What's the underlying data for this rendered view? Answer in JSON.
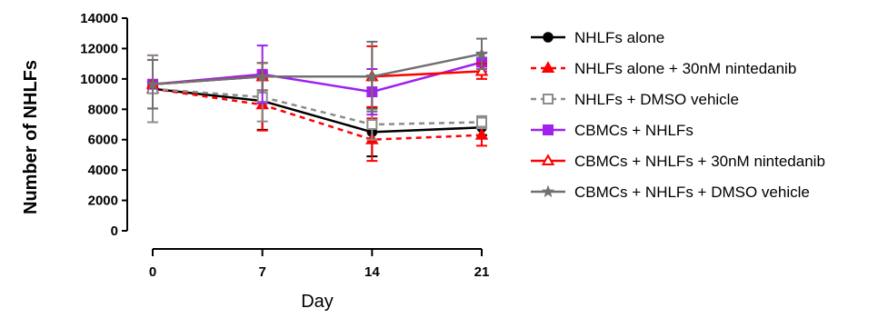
{
  "chart_data": {
    "type": "line",
    "xlabel": "Day",
    "ylabel": "Number of NHLFs",
    "x": [
      0,
      7,
      14,
      21
    ],
    "x_ticks": [
      "0",
      "7",
      "14",
      "21"
    ],
    "ylim": [
      0,
      14000
    ],
    "y_ticks": [
      "0",
      "2000",
      "4000",
      "6000",
      "8000",
      "10000",
      "12000",
      "14000"
    ],
    "legend_position": "right",
    "series": [
      {
        "name": "NHLFs alone",
        "color": "#000000",
        "dash": "solid",
        "marker": "circle",
        "marker_fill": "#000000",
        "values": [
          9350,
          8550,
          6500,
          6800
        ],
        "errors": [
          2200,
          1900,
          1600,
          500
        ]
      },
      {
        "name": "NHLFs alone + 30nM nintedanib",
        "color": "#ff0000",
        "dash": "dashed",
        "marker": "triangle",
        "marker_fill": "#ff0000",
        "values": [
          9350,
          8300,
          6000,
          6300
        ],
        "errors": [
          2200,
          1700,
          1400,
          700
        ]
      },
      {
        "name": "NHLFs +  DMSO vehicle",
        "color": "#8c8c8c",
        "dash": "dashed",
        "marker": "square-open",
        "marker_fill": "#ffffff",
        "values": [
          9350,
          8800,
          7000,
          7150
        ],
        "errors": [
          2200,
          1600,
          1000,
          400
        ]
      },
      {
        "name": "CBMCs + NHLFs",
        "color": "#a020f0",
        "dash": "solid",
        "marker": "square",
        "marker_fill": "#a020f0",
        "values": [
          9650,
          10300,
          9150,
          11100
        ],
        "errors": [
          1600,
          1900,
          1500,
          600
        ]
      },
      {
        "name": "CBMCs + NHLFs + 30nM nintedanib",
        "color": "#ff0000",
        "dash": "solid",
        "marker": "triangle-open",
        "marker_fill": "#ffffff",
        "values": [
          9650,
          10150,
          10150,
          10500
        ],
        "errors": [
          1600,
          900,
          2000,
          500
        ]
      },
      {
        "name": "CBMCs + NHLFs + DMSO vehicle",
        "color": "#707070",
        "dash": "solid",
        "marker": "star",
        "marker_fill": "#707070",
        "values": [
          9650,
          10150,
          10150,
          11650
        ],
        "errors": [
          1600,
          900,
          2300,
          1000
        ]
      }
    ]
  }
}
